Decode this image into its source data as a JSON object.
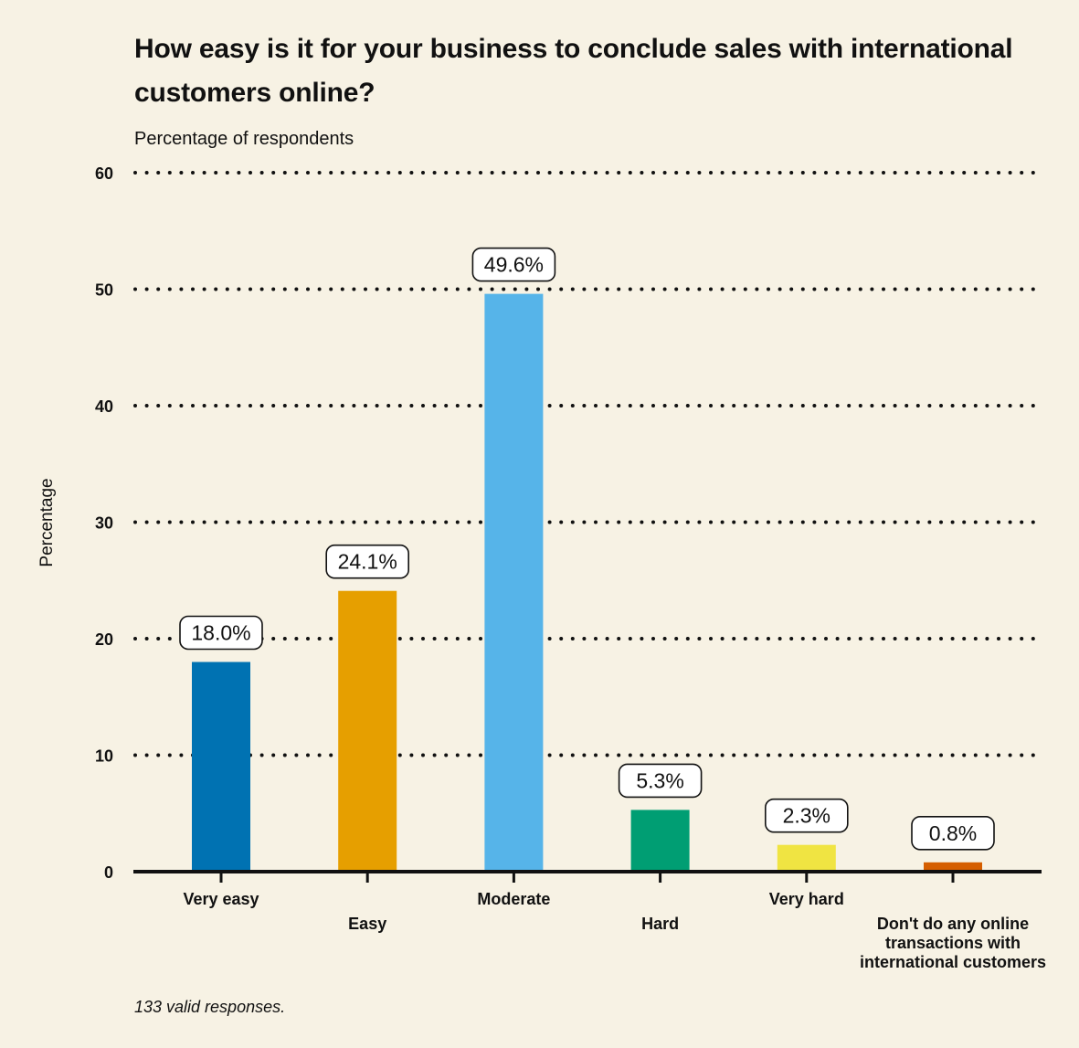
{
  "chart_data": {
    "type": "bar",
    "title": "How easy is it for your business to conclude sales with international customers online?",
    "subtitle": "Percentage of respondents",
    "ylabel": "Percentage",
    "xlabel": "",
    "ylim": [
      0,
      60
    ],
    "yticks": [
      0,
      10,
      20,
      30,
      40,
      50,
      60
    ],
    "grid": "horizontal dotted",
    "categories": [
      "Very easy",
      "Easy",
      "Moderate",
      "Hard",
      "Very hard",
      "Don't do any online transactions with international customers"
    ],
    "values": [
      18.0,
      24.1,
      49.6,
      5.3,
      2.3,
      0.8
    ],
    "data_labels": [
      "18.0%",
      "24.1%",
      "49.6%",
      "5.3%",
      "2.3%",
      "0.8%"
    ],
    "category_label_lines": [
      [
        "Very easy"
      ],
      [
        "Easy"
      ],
      [
        "Moderate"
      ],
      [
        "Hard"
      ],
      [
        "Very hard"
      ],
      [
        "Don't do any online",
        "transactions with",
        "international customers"
      ]
    ],
    "colors": [
      "#0072b2",
      "#e69f00",
      "#56b4e9",
      "#009e73",
      "#f0e442",
      "#d55e00"
    ],
    "note": "133 valid responses."
  }
}
